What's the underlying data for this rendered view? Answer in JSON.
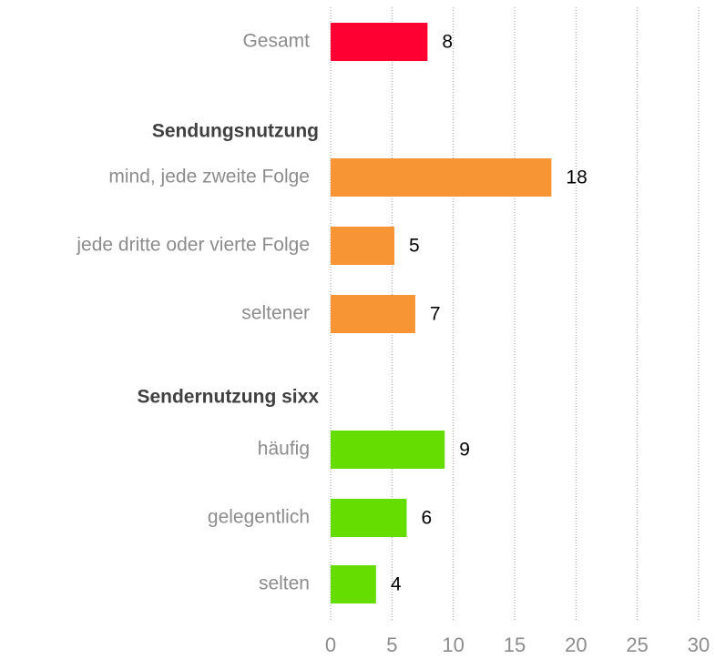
{
  "chart_data": {
    "type": "bar",
    "orientation": "horizontal",
    "categories": [
      "Gesamt",
      "Sendungsnutzung",
      "mind, jede zweite Folge",
      "jede dritte oder vierte Folge",
      "seltener",
      "Sendernutzung sixx",
      "häufig",
      "gelegentlich",
      "selten"
    ],
    "values": [
      7.9,
      null,
      18,
      5.2,
      6.9,
      null,
      9.3,
      6.2,
      3.7
    ],
    "value_labels": [
      "8",
      null,
      "18",
      "5",
      "7",
      null,
      "9",
      "6",
      "4"
    ],
    "colors": [
      "#ff0033",
      null,
      "#f79433",
      "#f79433",
      "#f79433",
      null,
      "#66dd00",
      "#66dd00",
      "#66dd00"
    ],
    "xlim": [
      0,
      30
    ],
    "xticks": [
      0,
      5,
      10,
      15,
      20,
      25,
      30
    ],
    "grid": true
  }
}
